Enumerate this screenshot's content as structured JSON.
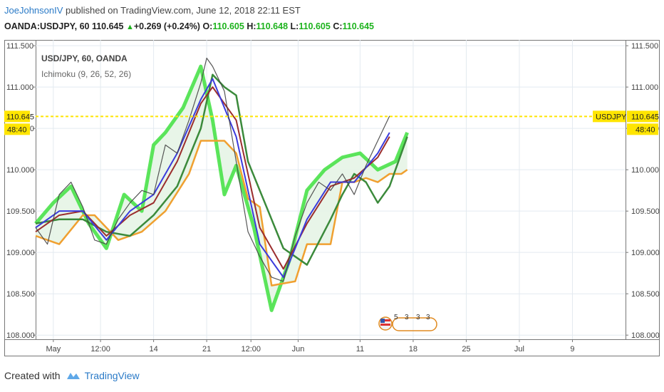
{
  "header": {
    "author": "JoeJohnsonIV",
    "published_text": "published on TradingView.com, June 12, 2018 22:11 EST"
  },
  "quote": {
    "symbol": "OANDA:USDJPY, 60",
    "price": "110.645",
    "change": "+0.269 (+0.24%)",
    "o_label": "O:",
    "o_value": "110.605",
    "h_label": "H:",
    "h_value": "110.648",
    "l_label": "L:",
    "l_value": "110.605",
    "c_label": "C:",
    "c_value": "110.645",
    "up_color": "#1db31d"
  },
  "legend": {
    "series_title": "USD/JPY, 60, OANDA",
    "indicator": "Ichimoku (9, 26, 52, 26)"
  },
  "price_tags": {
    "price": "110.645",
    "countdown": "48:40",
    "symbol_label": "USDJPY",
    "color": "#ffe500"
  },
  "events_marker": {
    "counts": [
      "5",
      "3",
      "3",
      "3"
    ],
    "icon": "us-flag-icon"
  },
  "footer": {
    "created_with": "Created with",
    "brand": "TradingView"
  },
  "chart_data": {
    "type": "line",
    "y_ticks": [
      "111.500",
      "111.000",
      "110.500",
      "110.000",
      "109.500",
      "109.000",
      "108.500",
      "108.000"
    ],
    "y_tick_values": [
      111.5,
      111.0,
      110.5,
      110.0,
      109.5,
      109.0,
      108.5,
      108.0
    ],
    "ylim": [
      107.95,
      111.57
    ],
    "x_ticks": [
      "May",
      "12:00",
      "14",
      "21",
      "12:00",
      "Jun",
      "11",
      "18",
      "25",
      "Jul",
      "9"
    ],
    "x_tick_positions": [
      0.03,
      0.11,
      0.2,
      0.29,
      0.365,
      0.445,
      0.55,
      0.64,
      0.73,
      0.82,
      0.91
    ],
    "last_price": 110.645,
    "grid": true,
    "colors": {
      "conversion": "#3b3bdc",
      "base": "#9b2d2d",
      "lagging": "#3b8a3b",
      "span_a": "#40e040",
      "span_b": "#f0a030",
      "cloud_fill": "#e6f4e6",
      "price_line": "#ffe500"
    },
    "series": [
      {
        "name": "Price",
        "x": [
          0,
          0.02,
          0.04,
          0.06,
          0.08,
          0.1,
          0.12,
          0.14,
          0.16,
          0.18,
          0.2,
          0.22,
          0.24,
          0.26,
          0.28,
          0.29,
          0.3,
          0.32,
          0.34,
          0.36,
          0.38,
          0.4,
          0.42,
          0.44,
          0.46,
          0.48,
          0.5,
          0.52,
          0.54,
          0.56,
          0.58,
          0.6
        ],
        "values": [
          109.3,
          109.1,
          109.7,
          109.85,
          109.55,
          109.15,
          109.1,
          109.4,
          109.6,
          109.75,
          109.7,
          110.3,
          110.2,
          110.6,
          111.05,
          111.35,
          111.25,
          110.95,
          110.1,
          109.25,
          108.95,
          108.7,
          108.65,
          109.2,
          109.6,
          109.85,
          109.75,
          109.95,
          109.7,
          110.05,
          110.35,
          110.65
        ]
      },
      {
        "name": "Conversion Line",
        "x": [
          0,
          0.04,
          0.08,
          0.12,
          0.16,
          0.2,
          0.24,
          0.28,
          0.3,
          0.34,
          0.38,
          0.42,
          0.46,
          0.5,
          0.54,
          0.58,
          0.6
        ],
        "values": [
          109.3,
          109.5,
          109.5,
          109.15,
          109.5,
          109.7,
          110.2,
          110.85,
          111.1,
          110.4,
          109.1,
          108.7,
          109.4,
          109.85,
          109.85,
          110.2,
          110.45
        ]
      },
      {
        "name": "Base Line",
        "x": [
          0,
          0.04,
          0.08,
          0.12,
          0.16,
          0.2,
          0.24,
          0.28,
          0.3,
          0.34,
          0.38,
          0.42,
          0.46,
          0.5,
          0.54,
          0.58,
          0.6
        ],
        "values": [
          109.25,
          109.45,
          109.5,
          109.2,
          109.45,
          109.6,
          110.1,
          110.8,
          111.0,
          110.6,
          109.3,
          108.8,
          109.35,
          109.8,
          109.9,
          110.15,
          110.4
        ]
      },
      {
        "name": "Lagging Span",
        "x": [
          0,
          0.04,
          0.08,
          0.12,
          0.16,
          0.2,
          0.24,
          0.28,
          0.3,
          0.32,
          0.34,
          0.36,
          0.38,
          0.42,
          0.46,
          0.5,
          0.52,
          0.54,
          0.56,
          0.58,
          0.6,
          0.62,
          0.63
        ],
        "values": [
          109.35,
          109.4,
          109.4,
          109.25,
          109.2,
          109.45,
          109.8,
          110.5,
          111.15,
          111.0,
          110.9,
          110.1,
          109.75,
          109.05,
          108.85,
          109.4,
          109.7,
          109.95,
          109.85,
          109.6,
          109.8,
          110.2,
          110.4
        ]
      },
      {
        "name": "Leading Span A",
        "x": [
          0,
          0.03,
          0.06,
          0.09,
          0.12,
          0.15,
          0.18,
          0.2,
          0.22,
          0.25,
          0.28,
          0.3,
          0.32,
          0.34,
          0.37,
          0.4,
          0.43,
          0.46,
          0.49,
          0.52,
          0.55,
          0.58,
          0.61,
          0.63
        ],
        "values": [
          109.35,
          109.6,
          109.8,
          109.35,
          109.05,
          109.7,
          109.5,
          110.3,
          110.45,
          110.75,
          111.25,
          110.6,
          109.7,
          110.05,
          109.3,
          108.3,
          108.9,
          109.75,
          110.0,
          110.15,
          110.2,
          110.0,
          110.1,
          110.45
        ]
      },
      {
        "name": "Leading Span B",
        "x": [
          0,
          0.04,
          0.08,
          0.1,
          0.14,
          0.18,
          0.22,
          0.26,
          0.28,
          0.32,
          0.34,
          0.36,
          0.38,
          0.4,
          0.44,
          0.46,
          0.5,
          0.52,
          0.54,
          0.56,
          0.58,
          0.6,
          0.62,
          0.63
        ],
        "values": [
          109.2,
          109.1,
          109.45,
          109.45,
          109.15,
          109.25,
          109.5,
          109.95,
          110.35,
          110.35,
          110.2,
          109.65,
          109.55,
          108.6,
          108.65,
          109.1,
          109.1,
          109.85,
          109.85,
          109.9,
          109.85,
          109.95,
          109.95,
          110.0
        ]
      }
    ]
  }
}
